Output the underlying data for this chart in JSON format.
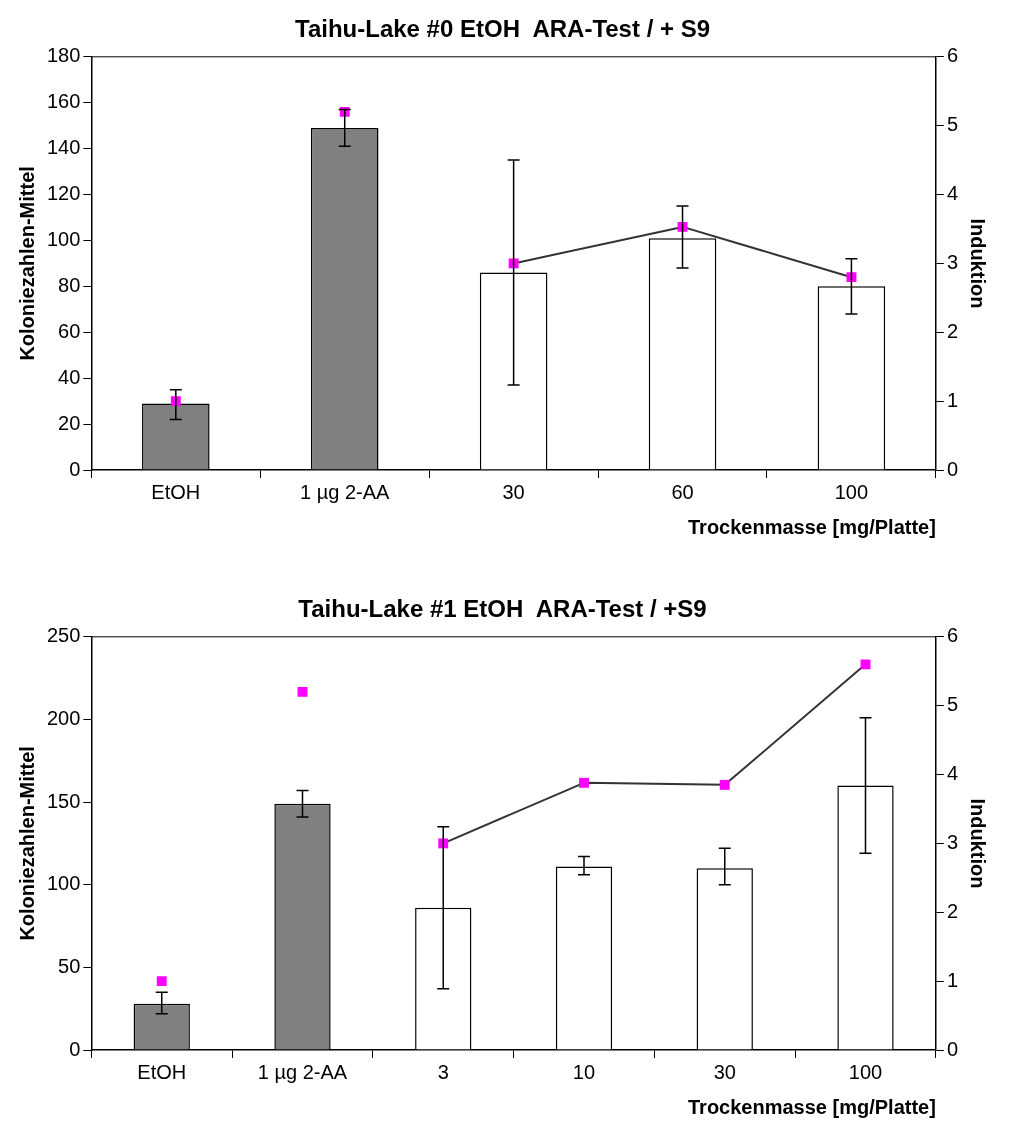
{
  "chart_data": [
    {
      "type": "bar",
      "title": "Taihu-Lake #0 EtOH  ARA-Test / + S9",
      "xlabel": "Trockenmasse [mg/Platte]",
      "ylabel": "Koloniezahlen-Mittel",
      "y2label": "Induktion",
      "categories": [
        "EtOH",
        "1 µg 2-AA",
        "30",
        "60",
        "100"
      ],
      "ylim": [
        0,
        180
      ],
      "yticks": [
        0,
        20,
        40,
        60,
        80,
        100,
        120,
        140,
        160,
        180
      ],
      "y2lim": [
        0,
        6
      ],
      "y2ticks": [
        0,
        1,
        2,
        3,
        4,
        5,
        6
      ],
      "grid": false,
      "legend": false,
      "series": [
        {
          "colors": [
            "#808080",
            "#808080",
            "#ffffff",
            "#ffffff",
            "#ffffff"
          ],
          "values": [
            29,
            149,
            86,
            101,
            80
          ],
          "errors": [
            [
              22,
              35
            ],
            [
              141,
              157
            ],
            [
              37,
              135
            ],
            [
              88,
              115
            ],
            [
              68,
              92
            ]
          ]
        },
        {
          "type": "line",
          "axis": "y2",
          "color": "#333333",
          "marker": "none",
          "values": [
            null,
            null,
            3,
            3.53,
            2.8
          ]
        },
        {
          "type": "scatter",
          "axis": "y2",
          "color": "#ff00ff",
          "marker": "square",
          "values": [
            1,
            5.2,
            3,
            3.53,
            2.8
          ]
        }
      ]
    },
    {
      "type": "bar",
      "title": "Taihu-Lake #1 EtOH  ARA-Test / +S9",
      "xlabel": "Trockenmasse [mg/Platte]",
      "ylabel": "Koloniezahlen-Mittel",
      "y2label": "Induktion",
      "categories": [
        "EtOH",
        "1 µg 2-AA",
        "3",
        "10",
        "30",
        "100"
      ],
      "ylim": [
        0,
        250
      ],
      "yticks": [
        0,
        50,
        100,
        150,
        200,
        250
      ],
      "y2lim": [
        0,
        6
      ],
      "y2ticks": [
        0,
        1,
        2,
        3,
        4,
        5,
        6
      ],
      "grid": false,
      "legend": false,
      "series": [
        {
          "colors": [
            "#808080",
            "#808080",
            "#ffffff",
            "#ffffff",
            "#ffffff",
            "#ffffff"
          ],
          "values": [
            28,
            149,
            86,
            111,
            110,
            160
          ],
          "errors": [
            [
              22,
              35
            ],
            [
              141,
              157
            ],
            [
              37,
              135
            ],
            [
              106,
              117
            ],
            [
              100,
              122
            ],
            [
              119,
              201
            ]
          ]
        },
        {
          "type": "line",
          "axis": "y2",
          "color": "#333333",
          "marker": "none",
          "values": [
            null,
            null,
            3,
            3.88,
            3.85,
            5.6
          ]
        },
        {
          "type": "scatter",
          "axis": "y2",
          "color": "#ff00ff",
          "marker": "square",
          "values": [
            1,
            5.2,
            3,
            3.88,
            3.85,
            5.6
          ]
        }
      ]
    }
  ]
}
